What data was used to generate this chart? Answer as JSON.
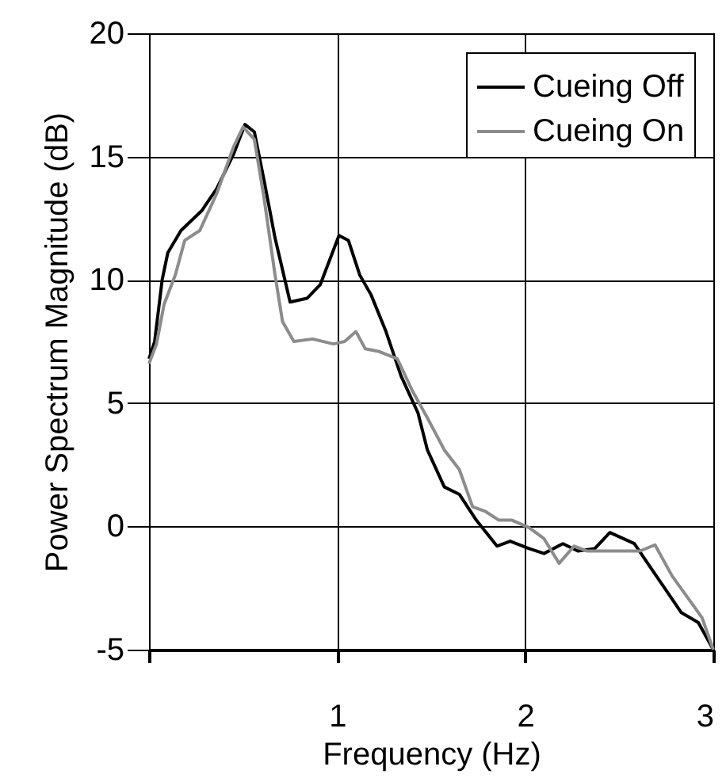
{
  "chart_data": {
    "type": "line",
    "xlabel": "Frequency (Hz)",
    "ylabel": "Power Spectrum Magnitude (dB)",
    "xlim": [
      0,
      3
    ],
    "ylim": [
      -5,
      20
    ],
    "xticks": [
      {
        "value": 0,
        "label": null
      },
      1,
      2,
      3
    ],
    "yticks": [
      -5,
      0,
      5,
      10,
      15,
      20
    ],
    "grid": true,
    "legend": "top right",
    "line_style": "solid",
    "series": [
      {
        "name": "Cueing Off",
        "color": "#000000",
        "x": [
          0,
          0.03,
          0.07,
          0.1,
          0.17,
          0.28,
          0.36,
          0.45,
          0.51,
          0.56,
          0.61,
          0.67,
          0.75,
          0.84,
          0.91,
          1.01,
          1.06,
          1.12,
          1.18,
          1.26,
          1.34,
          1.43,
          1.48,
          1.57,
          1.65,
          1.74,
          1.85,
          1.92,
          2.02,
          2.1,
          2.2,
          2.28,
          2.37,
          2.45,
          2.58,
          2.66,
          2.75,
          2.83,
          2.92,
          3
        ],
        "values": [
          6.8,
          7.5,
          10,
          11.1,
          12,
          12.8,
          13.7,
          15.1,
          16.3,
          16,
          14.1,
          11.7,
          9.1,
          9.25,
          9.8,
          11.8,
          11.6,
          10.2,
          9.4,
          7.9,
          6.1,
          4.6,
          3.1,
          1.6,
          1.3,
          0.25,
          -0.8,
          -0.6,
          -0.9,
          -1.1,
          -0.7,
          -1,
          -0.9,
          -0.25,
          -0.7,
          -1.6,
          -2.6,
          -3.5,
          -3.9,
          -5
        ]
      },
      {
        "name": "Cueing On",
        "color": "#8c8c8c",
        "x": [
          0,
          0.04,
          0.08,
          0.14,
          0.19,
          0.27,
          0.36,
          0.45,
          0.5,
          0.56,
          0.61,
          0.67,
          0.71,
          0.77,
          0.87,
          0.98,
          1.04,
          1.1,
          1.15,
          1.22,
          1.32,
          1.4,
          1.48,
          1.57,
          1.65,
          1.72,
          1.79,
          1.86,
          1.93,
          2.02,
          2.1,
          2.18,
          2.26,
          2.33,
          2.44,
          2.61,
          2.69,
          2.78,
          2.86,
          2.94,
          3
        ],
        "values": [
          6.6,
          7.4,
          9,
          10.2,
          11.6,
          12,
          13.5,
          15.4,
          16.2,
          15.7,
          13.4,
          10.2,
          8.3,
          7.5,
          7.6,
          7.4,
          7.5,
          7.9,
          7.2,
          7.1,
          6.8,
          5.5,
          4.4,
          3.1,
          2.3,
          0.8,
          0.6,
          0.25,
          0.25,
          -0.05,
          -0.5,
          -1.5,
          -0.8,
          -1,
          -1,
          -1,
          -0.75,
          -2,
          -2.85,
          -3.7,
          -5
        ]
      }
    ]
  }
}
